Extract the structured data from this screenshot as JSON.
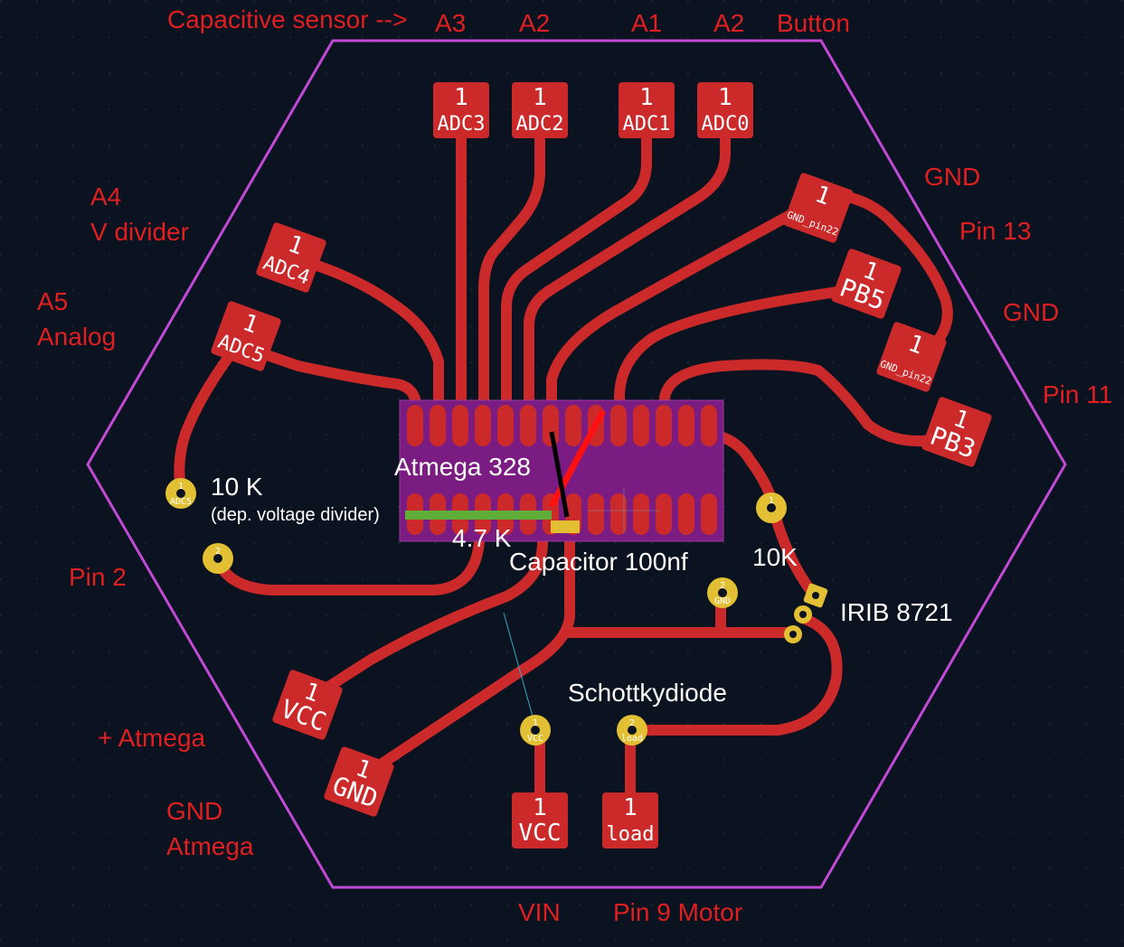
{
  "board": {
    "background": "#0b1220",
    "outline_color": "#c04ad6",
    "trace_color": "#cc2a2a",
    "pad_color": "#cc2a2a",
    "via_color": "#e3c033",
    "chip_color": "#7b1c82"
  },
  "annotations": {
    "capacitive_sensor": "Capacitive sensor -->",
    "a3": "A3",
    "a2_left": "A2",
    "a1": "A1",
    "a2_right": "A2",
    "button": "Button",
    "a4": "A4",
    "v_divider": "V divider",
    "a5": "A5",
    "analog": "Analog",
    "gnd_top": "GND",
    "pin13": "Pin 13",
    "gnd_mid": "GND",
    "pin11": "Pin 11",
    "pin2": "Pin 2",
    "plus_atmega": "+ Atmega",
    "gnd_atmega_1": "GND",
    "gnd_atmega_2": "Atmega",
    "vin": "VIN",
    "pin9_motor": "Pin 9 Motor"
  },
  "component_labels": {
    "atmega": "Atmega 328",
    "r10k_left": "10 K",
    "dep_voltage_divider": "(dep. voltage divider)",
    "r47k": "4.7 K",
    "capacitor": "Capacitor 100nf",
    "r10k_right": "10K",
    "irib": "IRIB 8721",
    "schottky": "Schottkydiode"
  },
  "pads": {
    "adc3": {
      "num": "1",
      "name": "ADC3"
    },
    "adc2": {
      "num": "1",
      "name": "ADC2"
    },
    "adc1": {
      "num": "1",
      "name": "ADC1"
    },
    "adc0": {
      "num": "1",
      "name": "ADC0"
    },
    "adc4": {
      "num": "1",
      "name": "ADC4"
    },
    "adc5": {
      "num": "1",
      "name": "ADC5"
    },
    "gnd_pin22_a": {
      "num": "1",
      "name": "GND_pin22"
    },
    "pb5": {
      "num": "1",
      "name": "PB5"
    },
    "gnd_pin22_b": {
      "num": "1",
      "name": "GND_pin22"
    },
    "pb3": {
      "num": "1",
      "name": "PB3"
    },
    "vcc_left": {
      "num": "1",
      "name": "VCC"
    },
    "gnd_left": {
      "num": "1",
      "name": "GND"
    },
    "vcc_bottom": {
      "num": "1",
      "name": "VCC"
    },
    "load_bottom": {
      "num": "1",
      "name": "load"
    }
  },
  "vias": {
    "adc5_via": {
      "num": "1",
      "name": "ADC5"
    },
    "left_lower_via": {
      "num": "2",
      "name": ""
    },
    "r10k_via": {
      "num": "1",
      "name": ""
    },
    "gnd_via": {
      "num": "2",
      "name": "GND"
    },
    "vcc_via": {
      "num": "1",
      "name": "VCC"
    },
    "load_via": {
      "num": "2",
      "name": "load"
    }
  }
}
